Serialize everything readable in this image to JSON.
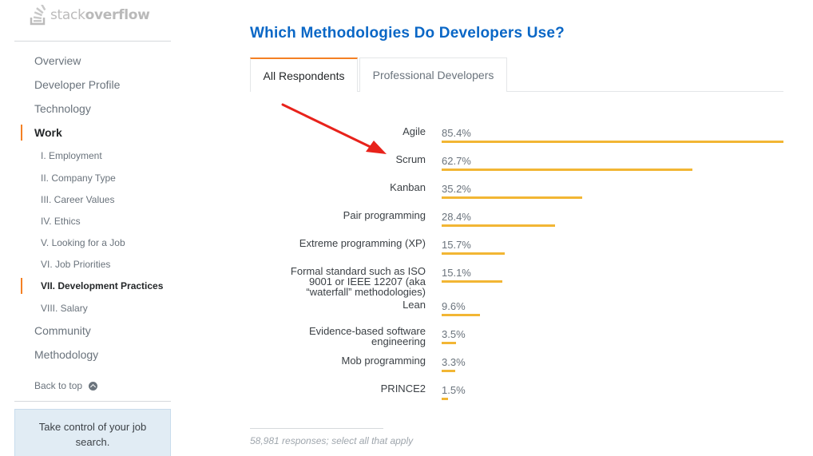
{
  "brand": {
    "logo_light": "stack",
    "logo_bold": "overflow"
  },
  "sidebar": {
    "items": [
      {
        "label": "Overview"
      },
      {
        "label": "Developer Profile"
      },
      {
        "label": "Technology"
      },
      {
        "label": "Work"
      }
    ],
    "sub_items": [
      {
        "label": "I. Employment"
      },
      {
        "label": "II. Company Type"
      },
      {
        "label": "III. Career Values"
      },
      {
        "label": "IV. Ethics"
      },
      {
        "label": "V. Looking for a Job"
      },
      {
        "label": "VI. Job Priorities"
      },
      {
        "label": "VII. Development Practices"
      },
      {
        "label": "VIII. Salary"
      }
    ],
    "after_items": [
      {
        "label": "Community"
      },
      {
        "label": "Methodology"
      }
    ],
    "back_to_top": "Back to top",
    "promo_text": "Take control of your job search."
  },
  "main": {
    "title": "Which Methodologies Do Developers Use?",
    "tabs": [
      {
        "label": "All Respondents",
        "active": true
      },
      {
        "label": "Professional Developers",
        "active": false
      }
    ],
    "footnote": "58,981 responses; select all that apply"
  },
  "chart_data": {
    "type": "bar",
    "orientation": "horizontal",
    "categories": [
      "Agile",
      "Scrum",
      "Kanban",
      "Pair programming",
      "Extreme programming (XP)",
      "Formal standard such as ISO 9001 or IEEE 12207 (aka “waterfall” methodologies)",
      "Lean",
      "Evidence-based software engineering",
      "Mob programming",
      "PRINCE2"
    ],
    "values": [
      85.4,
      62.7,
      35.2,
      28.4,
      15.7,
      15.1,
      9.6,
      3.5,
      3.3,
      1.5
    ],
    "value_labels": [
      "85.4%",
      "62.7%",
      "35.2%",
      "28.4%",
      "15.7%",
      "15.1%",
      "9.6%",
      "3.5%",
      "3.3%",
      "1.5%"
    ],
    "max": 85.4,
    "bar_color": "#f2b634"
  },
  "colors": {
    "accent": "#f48024",
    "title": "#0a67c6",
    "arrow": "#e8221b"
  }
}
